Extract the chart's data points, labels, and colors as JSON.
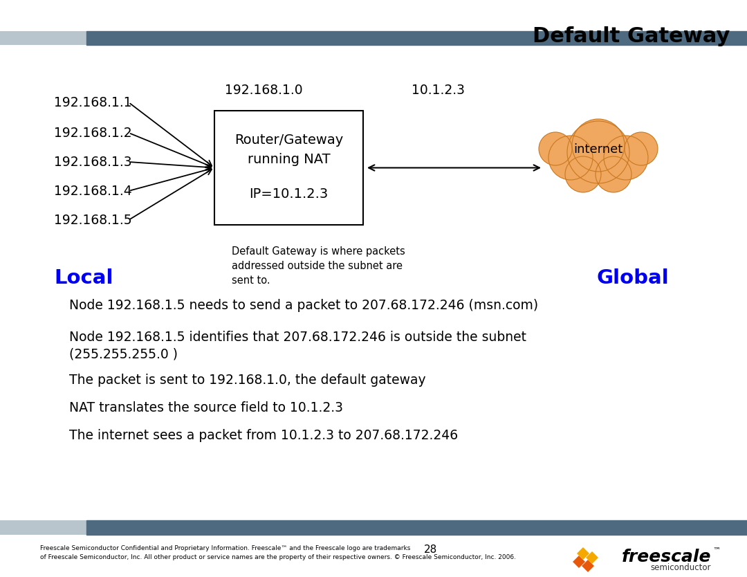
{
  "title": "Default Gateway",
  "bg_color": "#ffffff",
  "header_bar_color": "#4e6a80",
  "header_bar_light": "#b8c5cc",
  "local_label": "Local",
  "global_label": "Global",
  "local_color": "#0000ee",
  "global_color": "#0000ee",
  "local_ips": [
    "192.168.1.1",
    "192.168.1.2",
    "192.168.1.3",
    "192.168.1.4",
    "192.168.1.5"
  ],
  "gateway_ip_label": "192.168.1.0",
  "internet_ip_label": "10.1.2.3",
  "router_line1": "Router/Gateway",
  "router_line2": "running NAT",
  "router_line3": "IP=10.1.2.3",
  "internet_label": "internet",
  "cloud_color": "#f0a860",
  "cloud_edge_color": "#c87820",
  "note_text": "Default Gateway is where packets\naddressed outside the subnet are\nsent to.",
  "bullet_lines": [
    "Node 192.168.1.5 needs to send a packet to 207.68.172.246 (msn.com)",
    "Node 192.168.1.5 identifies that 207.68.172.246 is outside the subnet\n(255.255.255.0 )",
    "The packet is sent to 192.168.1.0, the default gateway",
    "NAT translates the source field to 10.1.2.3",
    "The internet sees a packet from 10.1.2.3 to 207.68.172.246"
  ],
  "footer_text": "Freescale Semiconductor Confidential and Proprietary Information. Freescale™ and the Freescale logo are trademarks\nof Freescale Semiconductor, Inc. All other product or service names are the property of their respective owners. © Freescale Semiconductor, Inc. 2006.",
  "footer_page": "28",
  "freescale_text": "freescale",
  "semiconductor_text": "semiconductor",
  "logo_color1": "#e8580a",
  "logo_color2": "#f5a800"
}
